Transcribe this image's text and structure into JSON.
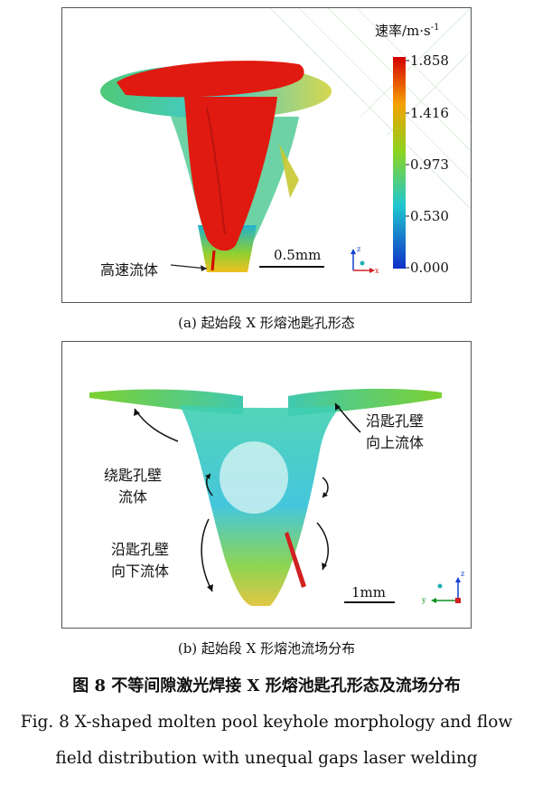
{
  "panel_a": {
    "legend": {
      "title": "速率/m·s",
      "title_exponent": "-1",
      "ticks": [
        "1.858",
        "1.416",
        "0.973",
        "0.530",
        "0.000"
      ]
    },
    "annotation": "高速流体",
    "scale_bar": "0.5mm",
    "axes": [
      "z",
      "x"
    ],
    "caption": "(a)  起始段 X 形熔池匙孔形态"
  },
  "panel_b": {
    "annotations": {
      "right": [
        "沿匙孔壁",
        "向上流体"
      ],
      "left_upper": [
        "绕匙孔壁",
        "流体"
      ],
      "left_lower": [
        "沿匙孔壁",
        "向下流体"
      ]
    },
    "scale_bar": "1mm",
    "axes": [
      "z",
      "y"
    ],
    "caption": "(b)  起始段 X 形熔池流场分布"
  },
  "figure": {
    "title": "图 8   不等间隙激光焊接 X 形熔池匙孔形态及流场分布",
    "english_line1": "Fig. 8 X-shaped molten pool keyhole morphology and flow",
    "english_line2": "field distribution with unequal gaps laser welding"
  },
  "colors": {
    "keyhole": "#e01a10",
    "colormap": [
      "#d40000",
      "#f5a000",
      "#7ed020",
      "#20c8d0",
      "#1030c8"
    ],
    "axis_z": "#1040d0",
    "axis_x": "#d02020",
    "axis_y": "#109020"
  }
}
